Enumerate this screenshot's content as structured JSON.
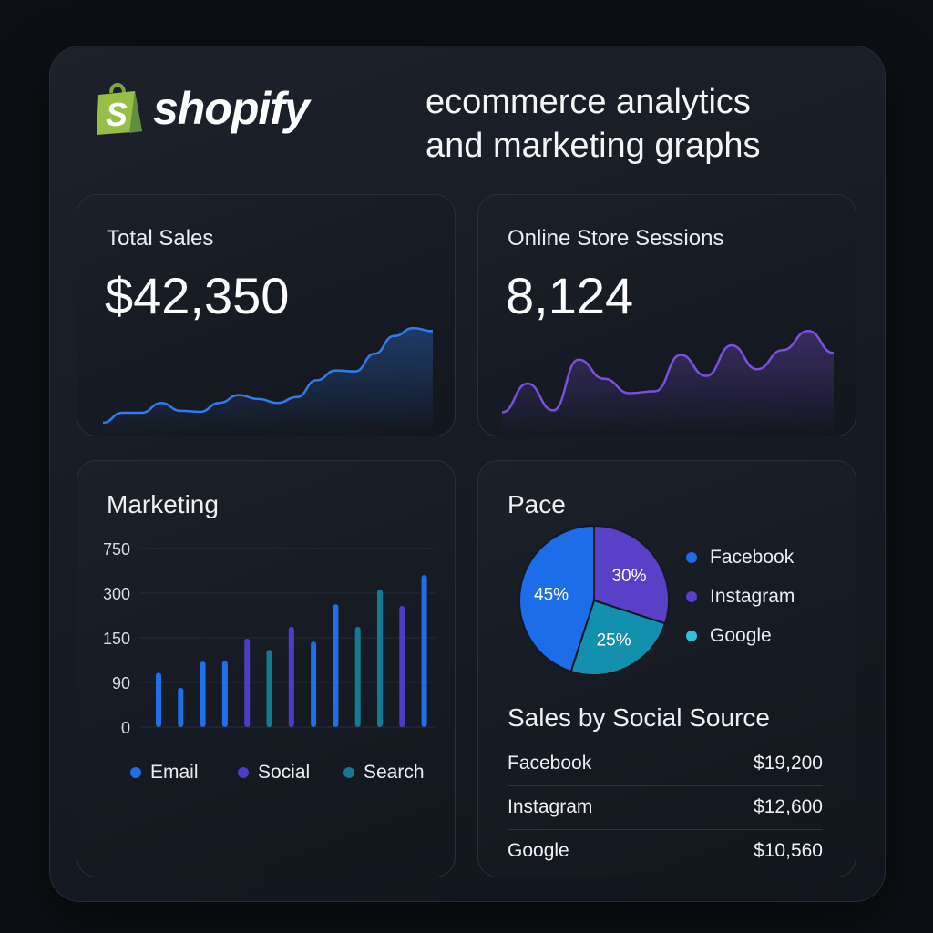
{
  "brand": {
    "name": "shopify",
    "icon": "shopping-bag-icon",
    "color": "#95bf47"
  },
  "headline": [
    "ecommerce analytics",
    "and marketing graphs"
  ],
  "total_sales": {
    "label": "Total Sales",
    "value": "$42,350",
    "color": "#2f7bf0"
  },
  "sessions": {
    "label": "Online Store Sessions",
    "value": "8,124",
    "color": "#7b4fe0"
  },
  "marketing": {
    "title": "Marketing",
    "legend": [
      "Email",
      "Social",
      "Search"
    ]
  },
  "pace": {
    "title": "Pace",
    "legend": [
      "Facebook",
      "Instagram",
      "Google"
    ]
  },
  "social_sales": {
    "title": "Sales by Social Source",
    "rows": [
      {
        "source": "Facebook",
        "amount": "$19,200"
      },
      {
        "source": "Instagram",
        "amount": "$12,600"
      },
      {
        "source": "Google",
        "amount": "$10,560"
      }
    ]
  },
  "chart_data": [
    {
      "type": "line",
      "name": "total-sales-sparkline",
      "values": [
        2,
        12,
        12,
        22,
        14,
        13,
        22,
        30,
        26,
        22,
        28,
        45,
        55,
        54,
        72,
        90,
        98,
        95
      ]
    },
    {
      "type": "line",
      "name": "sessions-sparkline",
      "values": [
        10,
        40,
        12,
        65,
        45,
        30,
        32,
        70,
        48,
        80,
        55,
        75,
        95,
        72
      ]
    },
    {
      "type": "bar",
      "title": "Marketing",
      "yticks": [
        0,
        90,
        150,
        300,
        750
      ],
      "series_colors": {
        "Email": "#1f6fe8",
        "Social": "#4a3fc4",
        "Search": "#137a93"
      },
      "bars": [
        {
          "s": "Email",
          "v": 103
        },
        {
          "s": "Email",
          "v": 79
        },
        {
          "s": "Email",
          "v": 118
        },
        {
          "s": "Email",
          "v": 119
        },
        {
          "s": "Social",
          "v": 149
        },
        {
          "s": "Search",
          "v": 134
        },
        {
          "s": "Social",
          "v": 187
        },
        {
          "s": "Email",
          "v": 145
        },
        {
          "s": "Email",
          "v": 263
        },
        {
          "s": "Search",
          "v": 187
        },
        {
          "s": "Search",
          "v": 337
        },
        {
          "s": "Social",
          "v": 257
        },
        {
          "s": "Email",
          "v": 484
        }
      ]
    },
    {
      "type": "pie",
      "title": "Pace",
      "slices": [
        {
          "label": "Instagram",
          "value": 30,
          "text": "30%",
          "color": "#5a3fc8"
        },
        {
          "label": "Google",
          "value": 25,
          "text": "25%",
          "color": "#1390ad"
        },
        {
          "label": "Facebook",
          "value": 45,
          "text": "45%",
          "color": "#1d6ce8"
        }
      ]
    }
  ]
}
